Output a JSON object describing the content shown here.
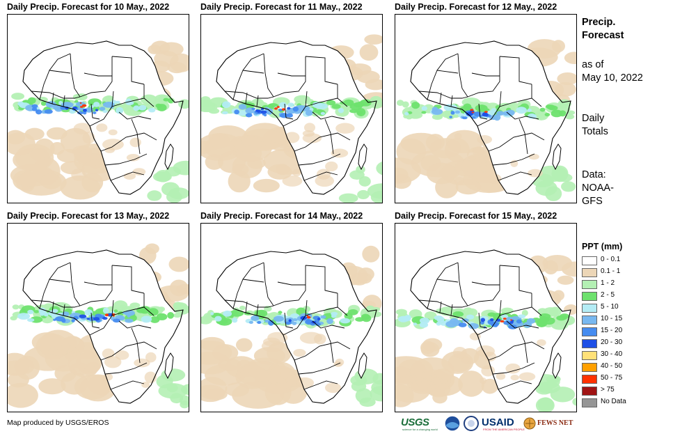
{
  "panels": [
    {
      "title": "Daily Precip. Forecast for 10 May., 2022"
    },
    {
      "title": "Daily Precip. Forecast for 11 May., 2022"
    },
    {
      "title": "Daily Precip. Forecast for 12 May., 2022"
    },
    {
      "title": "Daily Precip. Forecast for 13 May., 2022"
    },
    {
      "title": "Daily Precip. Forecast for 14 May., 2022"
    },
    {
      "title": "Daily Precip. Forecast for 15 May., 2022"
    }
  ],
  "sidebar": {
    "heading_line1": "Precip.",
    "heading_line2": "Forecast",
    "asof_line1": "as of",
    "asof_line2": "May 10, 2022",
    "totals_line1": "Daily",
    "totals_line2": "Totals",
    "data_line1": "Data:",
    "data_line2": "NOAA-",
    "data_line3": "GFS"
  },
  "legend": {
    "title": "PPT (mm)",
    "items": [
      {
        "label": "0 - 0.1",
        "color": "#ffffff"
      },
      {
        "label": "0.1 - 1",
        "color": "#ecd6b7"
      },
      {
        "label": "1 - 2",
        "color": "#b4f0b4"
      },
      {
        "label": "2 - 5",
        "color": "#6ee16e"
      },
      {
        "label": "5 - 10",
        "color": "#b4ecf5"
      },
      {
        "label": "10 - 15",
        "color": "#78b8f0"
      },
      {
        "label": "15 - 20",
        "color": "#468cf0"
      },
      {
        "label": "20 - 30",
        "color": "#1e50e6"
      },
      {
        "label": "30 - 40",
        "color": "#ffe178"
      },
      {
        "label": "40 - 50",
        "color": "#ffa000"
      },
      {
        "label": "50 - 75",
        "color": "#ff3200"
      },
      {
        "label": "> 75",
        "color": "#a01414"
      },
      {
        "label": "No Data",
        "color": "#969696"
      }
    ]
  },
  "credit": "Map produced by USGS/EROS",
  "logos": {
    "usgs": "USGS",
    "usgs_tagline": "science for a changing world",
    "usaid": "USAID",
    "usaid_tagline": "FROM THE AMERICAN PEOPLE",
    "fews": "FEWS NET"
  }
}
